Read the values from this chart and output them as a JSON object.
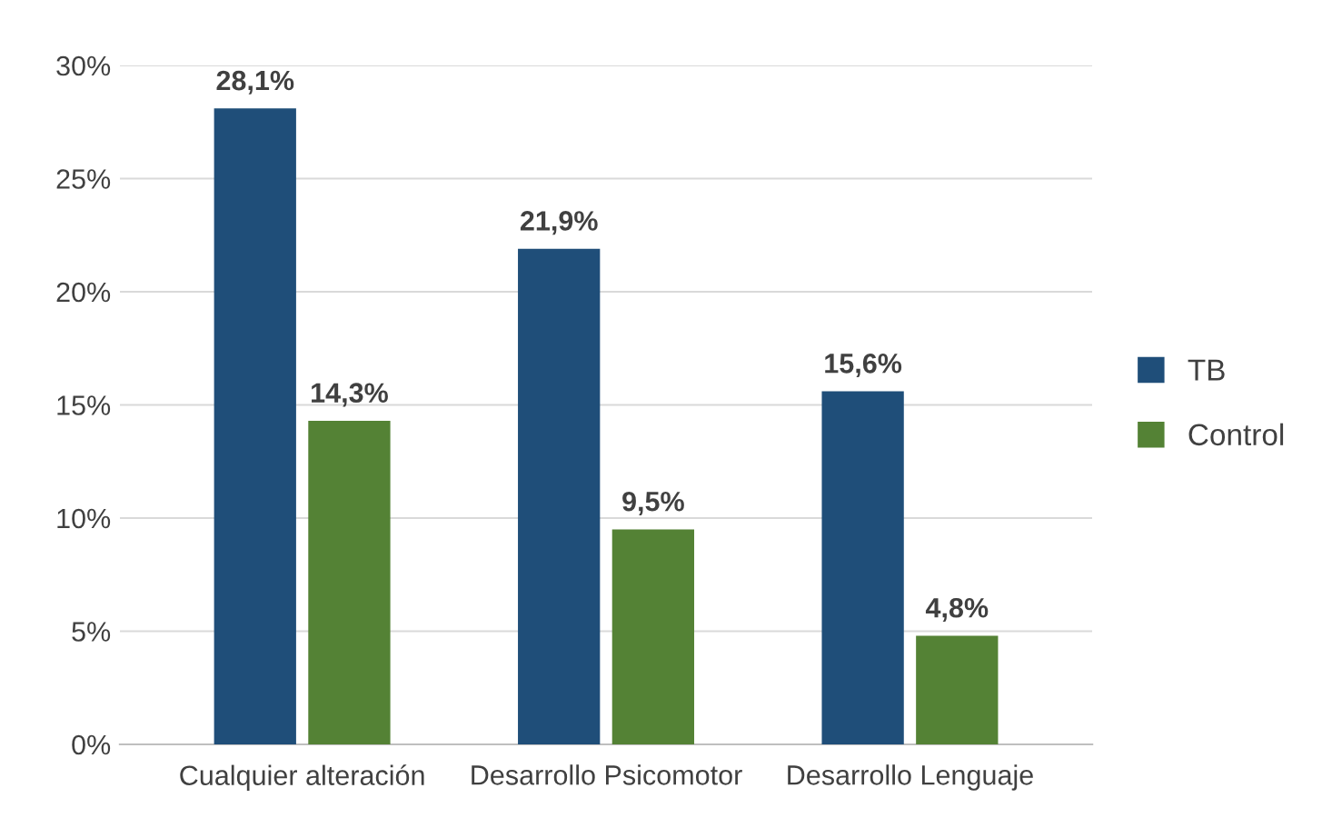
{
  "chart_data": {
    "type": "bar",
    "categories": [
      "Cualquier alteración",
      "Desarrollo Psicomotor",
      "Desarrollo Lenguaje"
    ],
    "series": [
      {
        "name": "TB",
        "color": "#1f4e79",
        "values": [
          28.1,
          21.9,
          15.6
        ],
        "value_labels": [
          "28,1%",
          "21,9%",
          "15,6%"
        ]
      },
      {
        "name": "Control",
        "color": "#548235",
        "values": [
          14.3,
          9.5,
          4.8
        ],
        "value_labels": [
          "14,3%",
          "9,5%",
          "4,8%"
        ]
      }
    ],
    "ylim": [
      0,
      30
    ],
    "yticks": [
      {
        "value": 0,
        "label": "0%"
      },
      {
        "value": 5,
        "label": "5%"
      },
      {
        "value": 10,
        "label": "10%"
      },
      {
        "value": 15,
        "label": "15%"
      },
      {
        "value": 20,
        "label": "20%"
      },
      {
        "value": 25,
        "label": "25%"
      },
      {
        "value": 30,
        "label": "30%"
      }
    ],
    "grid": "y",
    "legend": "right"
  }
}
